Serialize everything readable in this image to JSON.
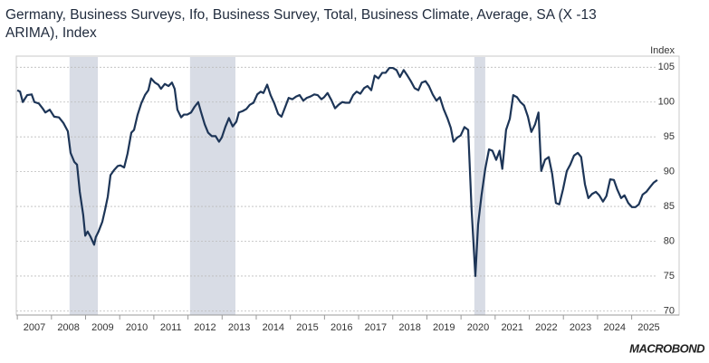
{
  "chart_data": {
    "type": "line",
    "title": [
      "Germany, Business Surveys, Ifo, Business Survey, Total, Business Climate, Average, SA (X -13",
      "ARIMA), Index"
    ],
    "y_axis_label": "Index",
    "logo": "MACROBOND",
    "color": "#1d3557",
    "shade_color": "#d8dce5",
    "grid": true,
    "xlim": [
      2006.97,
      2026.39
    ],
    "ylim": [
      69.4,
      106.6
    ],
    "yticks": [
      70,
      75,
      80,
      85,
      90,
      95,
      100,
      105
    ],
    "xticks": [
      2007,
      2008,
      2009,
      2010,
      2011,
      2012,
      2013,
      2014,
      2015,
      2016,
      2017,
      2018,
      2019,
      2020,
      2021,
      2022,
      2023,
      2024,
      2025
    ],
    "shaded_regions": [
      [
        2008.53,
        2009.36
      ],
      [
        2012.06,
        2013.39
      ],
      [
        2020.39,
        2020.71
      ]
    ],
    "x": [
      2007.0,
      2007.08,
      2007.16,
      2007.29,
      2007.42,
      2007.5,
      2007.63,
      2007.74,
      2007.82,
      2007.95,
      2008.08,
      2008.22,
      2008.35,
      2008.48,
      2008.56,
      2008.67,
      2008.75,
      2008.83,
      2008.93,
      2008.99,
      2009.06,
      2009.14,
      2009.25,
      2009.3,
      2009.38,
      2009.49,
      2009.57,
      2009.65,
      2009.73,
      2009.83,
      2009.94,
      2010.02,
      2010.13,
      2010.23,
      2010.34,
      2010.42,
      2010.52,
      2010.63,
      2010.74,
      2010.84,
      2010.92,
      2011.03,
      2011.13,
      2011.21,
      2011.32,
      2011.43,
      2011.53,
      2011.61,
      2011.69,
      2011.8,
      2011.88,
      2011.98,
      2012.09,
      2012.19,
      2012.3,
      2012.38,
      2012.49,
      2012.59,
      2012.7,
      2012.81,
      2012.91,
      2012.99,
      2013.1,
      2013.2,
      2013.31,
      2013.42,
      2013.49,
      2013.6,
      2013.71,
      2013.81,
      2013.92,
      2014.03,
      2014.13,
      2014.21,
      2014.32,
      2014.42,
      2014.53,
      2014.64,
      2014.74,
      2014.85,
      2014.95,
      2015.06,
      2015.17,
      2015.27,
      2015.38,
      2015.48,
      2015.59,
      2015.7,
      2015.8,
      2015.91,
      2015.99,
      2016.09,
      2016.2,
      2016.31,
      2016.41,
      2016.52,
      2016.62,
      2016.73,
      2016.84,
      2016.94,
      2017.05,
      2017.16,
      2017.26,
      2017.37,
      2017.47,
      2017.58,
      2017.69,
      2017.79,
      2017.9,
      2018.0,
      2018.11,
      2018.21,
      2018.32,
      2018.43,
      2018.53,
      2018.64,
      2018.75,
      2018.85,
      2018.96,
      2019.06,
      2019.17,
      2019.28,
      2019.38,
      2019.49,
      2019.6,
      2019.7,
      2019.78,
      2019.89,
      2019.99,
      2020.1,
      2020.21,
      2020.31,
      2020.42,
      2020.5,
      2020.6,
      2020.71,
      2020.82,
      2020.92,
      2021.03,
      2021.13,
      2021.21,
      2021.32,
      2021.43,
      2021.53,
      2021.64,
      2021.74,
      2021.85,
      2021.96,
      2022.06,
      2022.17,
      2022.27,
      2022.35,
      2022.46,
      2022.57,
      2022.67,
      2022.78,
      2022.88,
      2022.99,
      2023.1,
      2023.2,
      2023.31,
      2023.42,
      2023.52,
      2023.63,
      2023.73,
      2023.84,
      2023.95,
      2024.05,
      2024.16,
      2024.26,
      2024.37,
      2024.48,
      2024.58,
      2024.69,
      2024.79,
      2024.9,
      2025.01,
      2025.11,
      2025.21,
      2025.32,
      2025.43,
      2025.54,
      2025.64,
      2025.75
    ],
    "values": [
      101.7,
      101.5,
      100.0,
      101.0,
      101.1,
      100.0,
      99.8,
      99.1,
      98.5,
      98.9,
      97.9,
      97.8,
      97.0,
      95.8,
      92.7,
      91.4,
      91.0,
      87.1,
      83.8,
      80.8,
      81.4,
      80.7,
      79.5,
      80.6,
      81.4,
      82.8,
      84.5,
      86.4,
      89.5,
      90.2,
      90.8,
      90.9,
      90.6,
      92.6,
      95.6,
      96.0,
      98.1,
      99.8,
      101.0,
      101.7,
      103.4,
      102.8,
      102.5,
      101.9,
      102.6,
      102.3,
      102.8,
      101.9,
      98.9,
      97.8,
      98.2,
      98.2,
      98.5,
      99.3,
      100.0,
      98.6,
      96.8,
      95.6,
      95.1,
      95.1,
      94.3,
      94.9,
      96.5,
      97.7,
      96.5,
      97.2,
      98.5,
      98.7,
      99.0,
      99.6,
      99.9,
      101.1,
      101.5,
      101.3,
      102.5,
      101.0,
      99.8,
      98.3,
      97.9,
      99.3,
      100.6,
      100.4,
      100.8,
      101.0,
      100.2,
      100.6,
      100.8,
      101.1,
      101.0,
      100.4,
      100.7,
      101.3,
      100.3,
      99.1,
      99.6,
      100.0,
      99.9,
      99.9,
      101.0,
      101.5,
      101.2,
      102.0,
      102.3,
      101.7,
      103.8,
      103.4,
      104.2,
      104.2,
      104.9,
      104.9,
      104.6,
      103.6,
      104.6,
      103.8,
      103.0,
      102.0,
      101.7,
      102.8,
      103.0,
      102.3,
      101.1,
      100.2,
      100.7,
      99.0,
      97.7,
      96.3,
      94.3,
      94.9,
      95.2,
      96.4,
      96.0,
      84.5,
      75.0,
      82.4,
      86.6,
      90.4,
      93.2,
      93.0,
      91.7,
      93.0,
      90.4,
      96.0,
      97.6,
      101.0,
      100.7,
      100.0,
      99.5,
      97.9,
      95.7,
      96.8,
      98.5,
      90.1,
      91.7,
      92.1,
      89.7,
      85.5,
      85.3,
      87.5,
      90.1,
      91.0,
      92.3,
      92.7,
      92.1,
      88.2,
      86.2,
      86.8,
      87.1,
      86.6,
      85.7,
      86.5,
      88.9,
      88.8,
      87.4,
      86.2,
      86.6,
      85.5,
      84.9,
      84.9,
      85.3,
      86.7,
      87.1,
      87.8,
      88.4,
      88.8
    ]
  }
}
